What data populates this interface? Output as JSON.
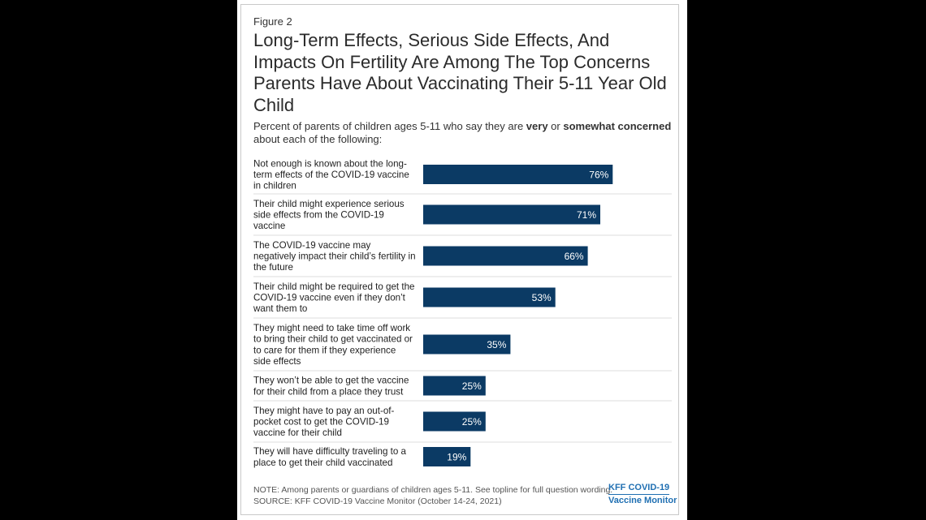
{
  "figure_label": "Figure 2",
  "title": "Long-Term Effects, Serious Side Effects, And Impacts On Fertility Are Among The Top Concerns Parents Have About Vaccinating Their 5-11 Year Old Child",
  "subtitle": {
    "part1": "Percent of parents of children ages 5-11 who say they are ",
    "bold1": "very",
    "part2": " or ",
    "bold2": "somewhat concerned",
    "part3": " about each of the following:"
  },
  "chart_data": {
    "type": "bar",
    "orientation": "horizontal",
    "categories": [
      "Not enough is known about the long-term effects of the COVID-19 vaccine in children",
      "Their child might experience serious side effects from the COVID-19 vaccine",
      "The COVID-19 vaccine may negatively impact their child’s fertility in the future",
      "Their child might be required to get the COVID-19 vaccine even if they don’t want them to",
      "They might need to take time off work to bring their child to get vaccinated or to care for them if they experience side effects",
      "They won’t be able to get the vaccine for their child from a place they trust",
      "They might have to pay an out-of-pocket cost to get the COVID-19 vaccine for their child",
      "They will have difficulty traveling to a place to get their child vaccinated"
    ],
    "category_lines": [
      [
        "Not enough is known about the long-",
        "term effects of the COVID-19 vaccine",
        "in children"
      ],
      [
        "Their child might experience serious",
        "side effects from the COVID-19",
        "vaccine"
      ],
      [
        "The COVID-19 vaccine may",
        "negatively impact their child’s fertility in",
        "the future"
      ],
      [
        "Their child might be required to get the",
        "COVID-19 vaccine even if they don’t",
        "want them to"
      ],
      [
        "They might need to take time off work",
        "to bring their child to get vaccinated or",
        "to care for them if they experience",
        "side effects"
      ],
      [
        "They won’t be able to get the vaccine",
        "for their child from a place they trust"
      ],
      [
        "They might have to pay an out-of-",
        "pocket cost to get the COVID-19",
        "vaccine for their child"
      ],
      [
        "They will have difficulty traveling to a",
        "place to get their child vaccinated"
      ]
    ],
    "values": [
      76,
      71,
      66,
      53,
      35,
      25,
      25,
      19
    ],
    "value_labels": [
      "76%",
      "71%",
      "66%",
      "53%",
      "35%",
      "25%",
      "25%",
      "19%"
    ],
    "xlim": [
      0,
      100
    ],
    "bar_color": "#0b3a64",
    "grid": false
  },
  "note": "NOTE: Among parents or guardians of children ages 5-11. See topline for full question wording.",
  "source": "SOURCE: KFF COVID-19 Vaccine Monitor (October 14-24, 2021)",
  "brand": {
    "line1": "KFF COVID-19",
    "line2": "Vaccine Monitor",
    "color": "#1f6fb2"
  }
}
